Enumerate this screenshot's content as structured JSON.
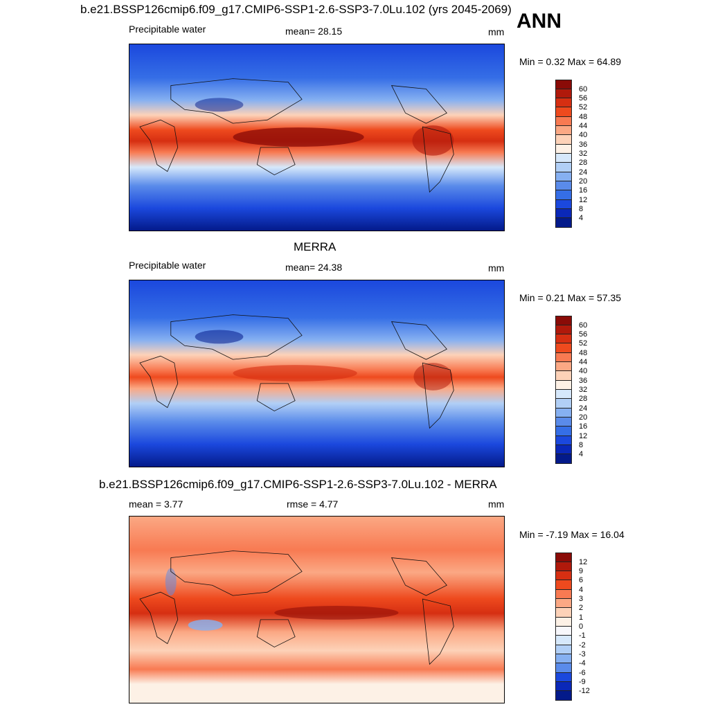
{
  "season": "ANN",
  "panels": [
    {
      "id": "model",
      "title": "b.e21.BSSP126cmip6.f09_g17.CMIP6-SSP1-2.6-SSP3-7.0Lu.102 (yrs 2045-2069)",
      "left_label": "Precipitable water",
      "center_label": "mean=  28.15",
      "units": "mm",
      "minmax": "Min =   0.32 Max =  64.89",
      "field": "precipitable_water_model",
      "levels": [
        "60",
        "56",
        "52",
        "48",
        "44",
        "40",
        "36",
        "32",
        "28",
        "24",
        "20",
        "16",
        "12",
        "8",
        "4"
      ]
    },
    {
      "id": "obs",
      "title": "MERRA",
      "left_label": "Precipitable water",
      "center_label": "mean=  24.38",
      "units": "mm",
      "minmax": "Min =   0.21 Max =  57.35",
      "field": "precipitable_water_merra",
      "levels": [
        "60",
        "56",
        "52",
        "48",
        "44",
        "40",
        "36",
        "32",
        "28",
        "24",
        "20",
        "16",
        "12",
        "8",
        "4"
      ]
    },
    {
      "id": "diff",
      "title": "b.e21.BSSP126cmip6.f09_g17.CMIP6-SSP1-2.6-SSP3-7.0Lu.102 - MERRA",
      "left_label": "mean =   3.77",
      "center_label": "rmse =   4.77",
      "units": "mm",
      "minmax": "Min =  -7.19 Max =  16.04",
      "field": "difference",
      "levels": [
        "12",
        "9",
        "6",
        "4",
        "3",
        "2",
        "1",
        "0",
        "-1",
        "-2",
        "-3",
        "-4",
        "-6",
        "-9",
        "-12"
      ]
    }
  ],
  "colors": {
    "abs_scale": [
      "#8a0b07",
      "#b0190b",
      "#d62f12",
      "#ee4a1e",
      "#f87a52",
      "#fba884",
      "#fdd2b8",
      "#fdf1e6",
      "#d6e8fb",
      "#b1cff6",
      "#86b0f1",
      "#5a8bea",
      "#356ee6",
      "#1b48dd",
      "#0a28b8",
      "#031a8a"
    ],
    "diff_scale": [
      "#8a0b07",
      "#b0190b",
      "#d62f12",
      "#ee4a1e",
      "#f87a52",
      "#fba884",
      "#fdd2b8",
      "#fdf1e6",
      "#f7f7fb",
      "#d6e8fb",
      "#b1cff6",
      "#86b0f1",
      "#5a8bea",
      "#1b48dd",
      "#0a28b8",
      "#031a8a"
    ]
  }
}
